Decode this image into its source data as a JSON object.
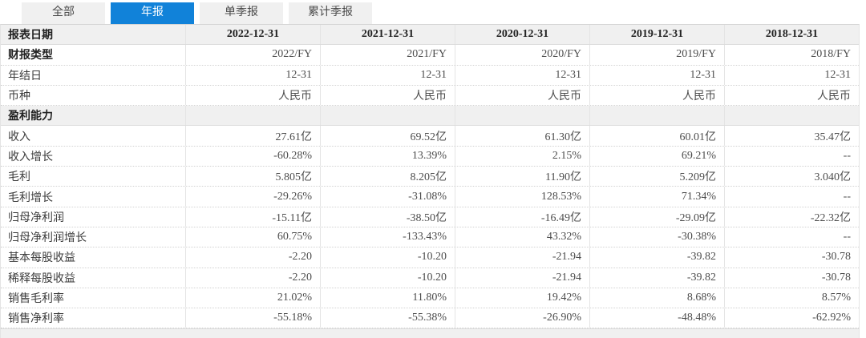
{
  "tabs": [
    {
      "label": "全部",
      "active": false
    },
    {
      "label": "年报",
      "active": true
    },
    {
      "label": "单季报",
      "active": false
    },
    {
      "label": "累计季报",
      "active": false
    }
  ],
  "colors": {
    "active_tab_bg": "#1182d9",
    "active_tab_text": "#ffffff",
    "inactive_tab_bg": "#f0f0f0",
    "header_row_bg": "#f0f0f0",
    "row_divider": "#d2d2d2",
    "column_divider": "#e4e4e4"
  },
  "table": {
    "rows": [
      {
        "label": "报表日期",
        "type": "header",
        "values": [
          "2022-12-31",
          "2021-12-31",
          "2020-12-31",
          "2019-12-31",
          "2018-12-31"
        ]
      },
      {
        "label": "财报类型",
        "type": "bold-label",
        "values": [
          "2022/FY",
          "2021/FY",
          "2020/FY",
          "2019/FY",
          "2018/FY"
        ]
      },
      {
        "label": "年结日",
        "type": "",
        "values": [
          "12-31",
          "12-31",
          "12-31",
          "12-31",
          "12-31"
        ]
      },
      {
        "label": "币种",
        "type": "",
        "values": [
          "人民币",
          "人民币",
          "人民币",
          "人民币",
          "人民币"
        ]
      },
      {
        "label": "盈利能力",
        "type": "section",
        "values": [
          "",
          "",
          "",
          "",
          ""
        ]
      },
      {
        "label": "收入",
        "type": "",
        "values": [
          "27.61亿",
          "69.52亿",
          "61.30亿",
          "60.01亿",
          "35.47亿"
        ]
      },
      {
        "label": "收入增长",
        "type": "",
        "values": [
          "-60.28%",
          "13.39%",
          "2.15%",
          "69.21%",
          "--"
        ]
      },
      {
        "label": "毛利",
        "type": "",
        "values": [
          "5.805亿",
          "8.205亿",
          "11.90亿",
          "5.209亿",
          "3.040亿"
        ]
      },
      {
        "label": "毛利增长",
        "type": "",
        "values": [
          "-29.26%",
          "-31.08%",
          "128.53%",
          "71.34%",
          "--"
        ]
      },
      {
        "label": "归母净利润",
        "type": "",
        "values": [
          "-15.11亿",
          "-38.50亿",
          "-16.49亿",
          "-29.09亿",
          "-22.32亿"
        ]
      },
      {
        "label": "归母净利润增长",
        "type": "",
        "values": [
          "60.75%",
          "-133.43%",
          "43.32%",
          "-30.38%",
          "--"
        ]
      },
      {
        "label": "基本每股收益",
        "type": "",
        "values": [
          "-2.20",
          "-10.20",
          "-21.94",
          "-39.82",
          "-30.78"
        ]
      },
      {
        "label": "稀释每股收益",
        "type": "",
        "values": [
          "-2.20",
          "-10.20",
          "-21.94",
          "-39.82",
          "-30.78"
        ]
      },
      {
        "label": "销售毛利率",
        "type": "",
        "values": [
          "21.02%",
          "11.80%",
          "19.42%",
          "8.68%",
          "8.57%"
        ]
      },
      {
        "label": "销售净利率",
        "type": "",
        "values": [
          "-55.18%",
          "-55.38%",
          "-26.90%",
          "-48.48%",
          "-62.92%"
        ]
      }
    ]
  }
}
